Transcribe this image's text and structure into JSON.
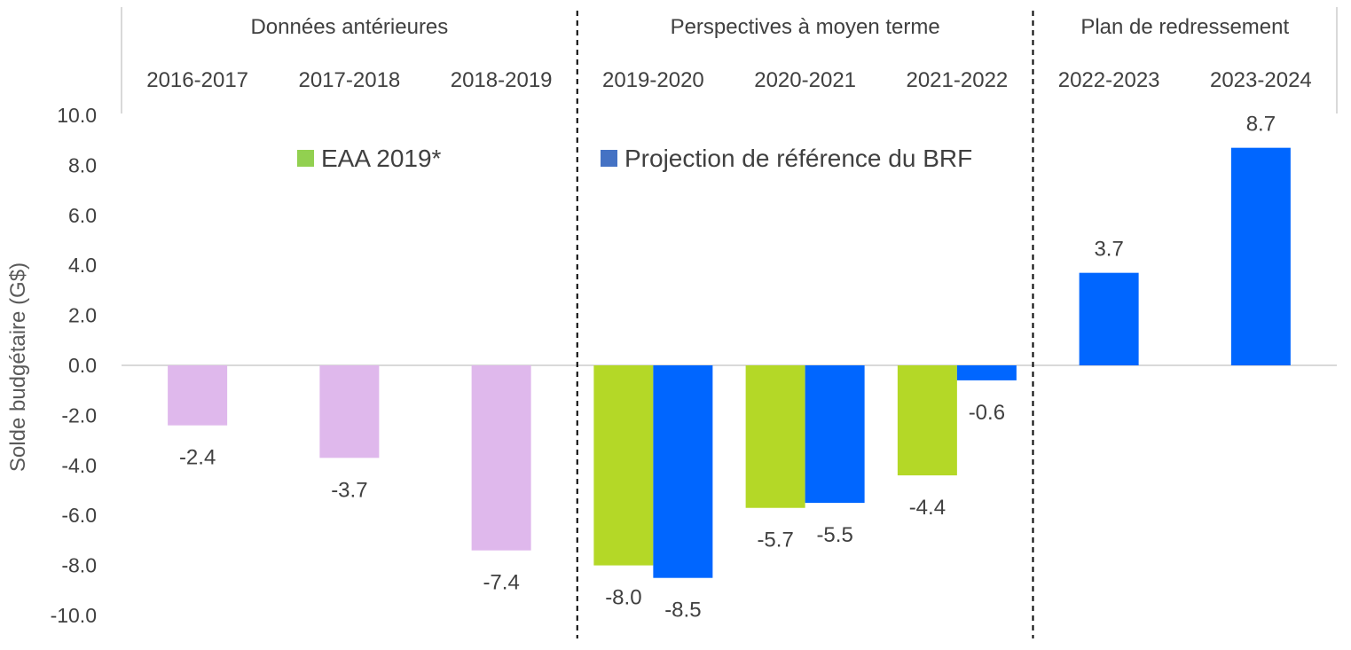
{
  "chart_data": {
    "type": "bar",
    "ylabel": "Solde budgétaire (G$)",
    "ylim": [
      -10,
      10
    ],
    "ytick_step": 2,
    "ytick_decimals": 1,
    "categories": [
      "2016-2017",
      "2017-2018",
      "2018-2019",
      "2019-2020",
      "2020-2021",
      "2021-2022",
      "2022-2023",
      "2023-2024"
    ],
    "groups": [
      {
        "label": "Données antérieures",
        "categories": [
          "2016-2017",
          "2017-2018",
          "2018-2019"
        ]
      },
      {
        "label": "Perspectives à moyen terme",
        "categories": [
          "2019-2020",
          "2020-2021",
          "2021-2022"
        ]
      },
      {
        "label": "Plan de redressement",
        "categories": [
          "2022-2023",
          "2023-2024"
        ]
      }
    ],
    "series": [
      {
        "name": "",
        "color": "#dfb8ec",
        "values": [
          -2.4,
          -3.7,
          -7.4,
          null,
          null,
          null,
          null,
          null
        ]
      },
      {
        "name": "EAA 2019*",
        "color": "#b4d827",
        "legend_color": "#92d050",
        "values": [
          null,
          null,
          null,
          -8.0,
          -5.7,
          -4.4,
          null,
          null
        ]
      },
      {
        "name": "Projection de référence du BRF",
        "color": "#0066ff",
        "legend_color": "#4472c4",
        "values": [
          null,
          null,
          null,
          -8.5,
          -5.5,
          -0.6,
          3.7,
          8.7
        ]
      }
    ],
    "grid": false,
    "legend_position": "top-center"
  }
}
